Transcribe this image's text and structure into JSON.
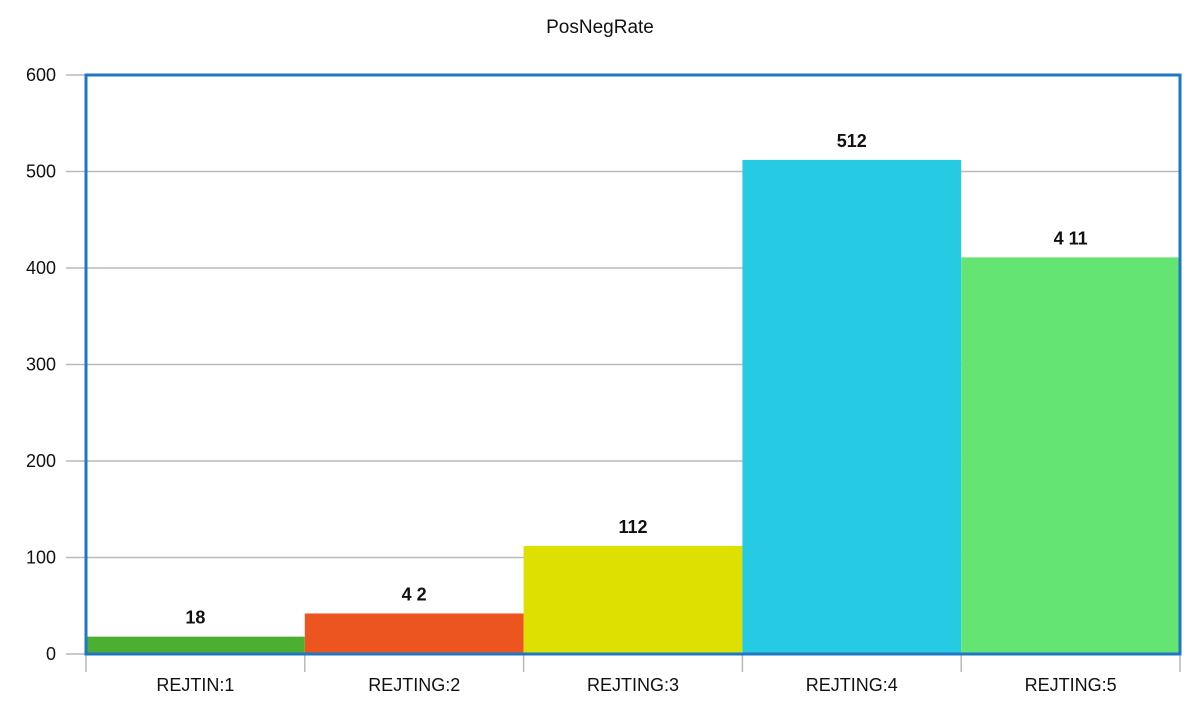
{
  "chart_data": {
    "type": "bar",
    "title": "PosNegRate",
    "xlabel": "",
    "ylabel": "",
    "categories": [
      "REJTIN:1",
      "REJTING:2",
      "REJTING:3",
      "REJTING:4",
      "REJTING:5"
    ],
    "values": [
      18,
      42,
      112,
      512,
      411
    ],
    "data_labels": [
      "18",
      "4 2",
      "112",
      "512",
      "4 11"
    ],
    "ylim": [
      0,
      600
    ],
    "yticks": [
      0,
      100,
      200,
      300,
      400,
      500,
      600
    ],
    "ytick_labels": [
      "0",
      "100",
      "200",
      "300",
      "400",
      "500",
      "600"
    ],
    "colors": [
      "#4caf32",
      "#ec5520",
      "#dde000",
      "#26cbe3",
      "#64e472"
    ],
    "grid": true,
    "legend": "none",
    "frame_color": "#1f77c4",
    "grid_color": "#b9b9b9"
  }
}
